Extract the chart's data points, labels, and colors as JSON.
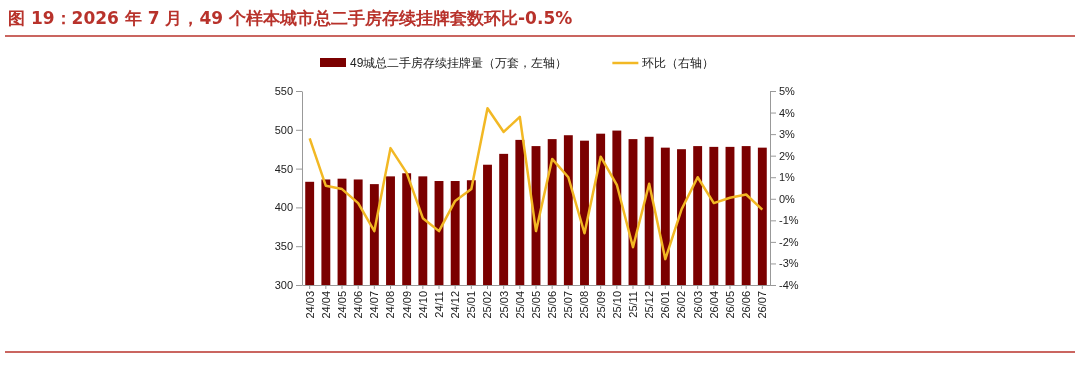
{
  "chart_data": {
    "type": "bar",
    "title": "图 19：2026 年 7 月，49 个样本城市总二手房存续挂牌套数环比-0.5%",
    "categories": [
      "24/03",
      "24/04",
      "24/05",
      "24/06",
      "24/07",
      "24/08",
      "24/09",
      "24/10",
      "24/11",
      "24/12",
      "25/01",
      "25/02",
      "25/03",
      "25/04",
      "25/05",
      "25/06",
      "25/07",
      "25/08",
      "25/09",
      "25/10",
      "25/11",
      "25/12",
      "26/01",
      "26/02",
      "26/03",
      "26/04",
      "26/05",
      "26/06",
      "26/07"
    ],
    "series": [
      {
        "name": "49城总二手房存续挂牌量（万套，左轴）",
        "color": "#7b0000",
        "values": [
          433,
          436,
          437,
          436,
          430,
          440,
          444,
          440,
          434,
          434,
          435,
          455,
          469,
          487,
          479,
          488,
          493,
          486,
          495,
          499,
          488,
          491,
          477,
          475,
          479,
          478,
          478,
          479,
          477
        ]
      },
      {
        "name": "环比（右轴）",
        "type": "line",
        "axis": "y2",
        "color": "#f2b824",
        "values": [
          2.8,
          0.6,
          0.45,
          -0.2,
          -1.5,
          2.35,
          1.2,
          -0.9,
          -1.5,
          -0.1,
          0.45,
          4.2,
          3.1,
          3.8,
          -1.5,
          1.85,
          1.0,
          -1.6,
          1.95,
          0.65,
          -2.25,
          0.7,
          -2.8,
          -0.5,
          1.0,
          -0.2,
          0.05,
          0.2,
          -0.5
        ]
      }
    ],
    "ylim": [
      300,
      550
    ],
    "yticks": [
      300,
      350,
      400,
      450,
      500,
      550
    ],
    "y2lim": [
      -4,
      5
    ],
    "y2ticks": [
      {
        "value": -4,
        "label": "-4%"
      },
      {
        "value": -3,
        "label": "-3%"
      },
      {
        "value": -2,
        "label": "-2%"
      },
      {
        "value": -1,
        "label": "-1%"
      },
      {
        "value": 0,
        "label": "0%"
      },
      {
        "value": 1,
        "label": "1%"
      },
      {
        "value": 2,
        "label": "2%"
      },
      {
        "value": 3,
        "label": "3%"
      },
      {
        "value": 4,
        "label": "4%"
      },
      {
        "value": 5,
        "label": "5%"
      }
    ],
    "legend": "top",
    "marker": "none",
    "line_style": "solid"
  }
}
